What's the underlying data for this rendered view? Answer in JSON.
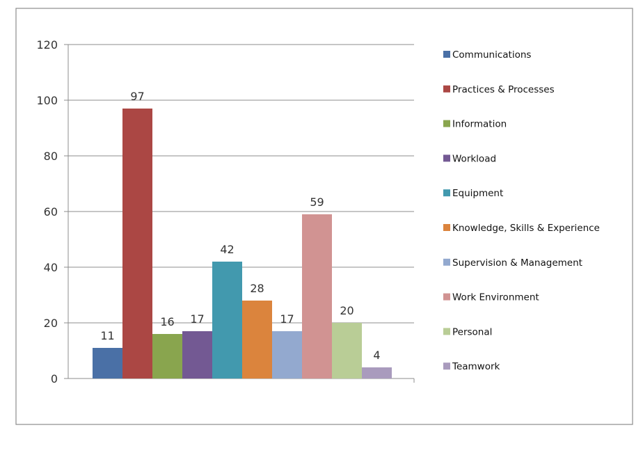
{
  "chart_data": {
    "type": "bar",
    "title": "",
    "xlabel": "",
    "ylabel": "",
    "ylim": [
      0,
      120
    ],
    "yticks": [
      0,
      20,
      40,
      60,
      80,
      100,
      120
    ],
    "grid": true,
    "legend_position": "right",
    "categories": [
      "Communications",
      "Practices & Processes",
      "Information",
      "Workload",
      "Equipment",
      "Knowledge, Skills & Experience",
      "Supervision & Management",
      "Work Environment",
      "Personal",
      "Teamwork"
    ],
    "values": [
      11,
      97,
      16,
      17,
      42,
      28,
      17,
      59,
      20,
      4
    ],
    "colors": [
      "#4a70a6",
      "#ab4744",
      "#89a54e",
      "#735993",
      "#4299ae",
      "#db843d",
      "#93a9cf",
      "#d19392",
      "#b9cd96",
      "#a99bbd"
    ]
  }
}
